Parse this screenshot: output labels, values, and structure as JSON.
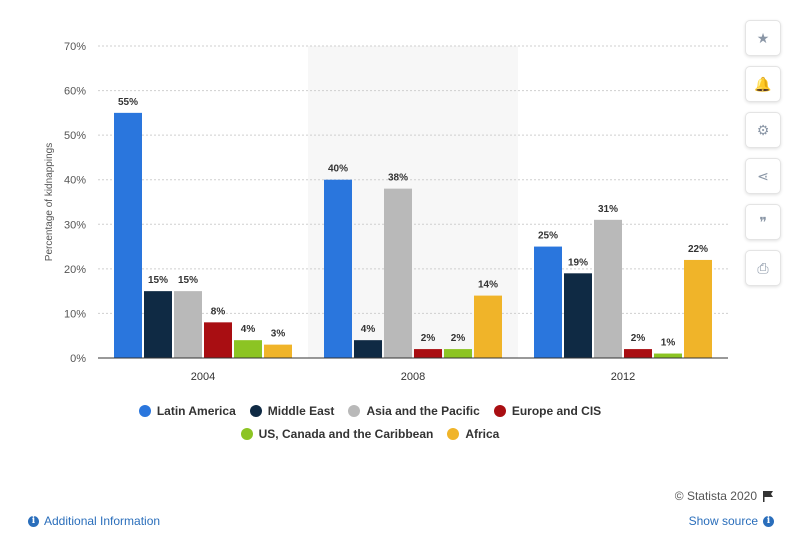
{
  "chart_data": {
    "type": "bar",
    "ylabel": "Percentage of kidnappings",
    "ylim": [
      0,
      70
    ],
    "yticks": [
      "0%",
      "10%",
      "20%",
      "30%",
      "40%",
      "50%",
      "60%",
      "70%"
    ],
    "yticks_values": [
      0,
      10,
      20,
      30,
      40,
      50,
      60,
      70
    ],
    "categories": [
      "2004",
      "2008",
      "2012"
    ],
    "grid": true,
    "legend_position": "bottom",
    "series": [
      {
        "name": "Latin America",
        "color": "#2a76dd",
        "values": [
          55,
          40,
          25
        ],
        "labels": [
          "55%",
          "40%",
          "25%"
        ]
      },
      {
        "name": "Middle East",
        "color": "#0f2a44",
        "values": [
          15,
          4,
          19
        ],
        "labels": [
          "15%",
          "4%",
          "19%"
        ]
      },
      {
        "name": "Asia and the Pacific",
        "color": "#b9b9b9",
        "values": [
          15,
          38,
          31
        ],
        "labels": [
          "15%",
          "38%",
          "31%"
        ]
      },
      {
        "name": "Europe and CIS",
        "color": "#a90e12",
        "values": [
          8,
          2,
          2
        ],
        "labels": [
          "8%",
          "2%",
          "2%"
        ]
      },
      {
        "name": "US, Canada and the Caribbean",
        "color": "#8cc423",
        "values": [
          4,
          2,
          1
        ],
        "labels": [
          "4%",
          "2%",
          "1%"
        ]
      },
      {
        "name": "Africa",
        "color": "#f0b429",
        "values": [
          3,
          14,
          22
        ],
        "labels": [
          "3%",
          "14%",
          "22%"
        ]
      }
    ]
  },
  "legend_rows": [
    [
      0,
      1,
      2,
      3
    ],
    [
      4,
      5
    ]
  ],
  "toolbar": {
    "items": [
      {
        "name": "star-icon",
        "glyph": "★"
      },
      {
        "name": "bell-icon",
        "glyph": "🔔"
      },
      {
        "name": "gear-icon",
        "glyph": "⚙"
      },
      {
        "name": "share-icon",
        "glyph": "⋖"
      },
      {
        "name": "quote-icon",
        "glyph": "❞"
      },
      {
        "name": "print-icon",
        "glyph": "⎙"
      }
    ]
  },
  "footer": {
    "credit": "© Statista 2020",
    "additional_info": "Additional Information",
    "show_source": "Show source"
  }
}
